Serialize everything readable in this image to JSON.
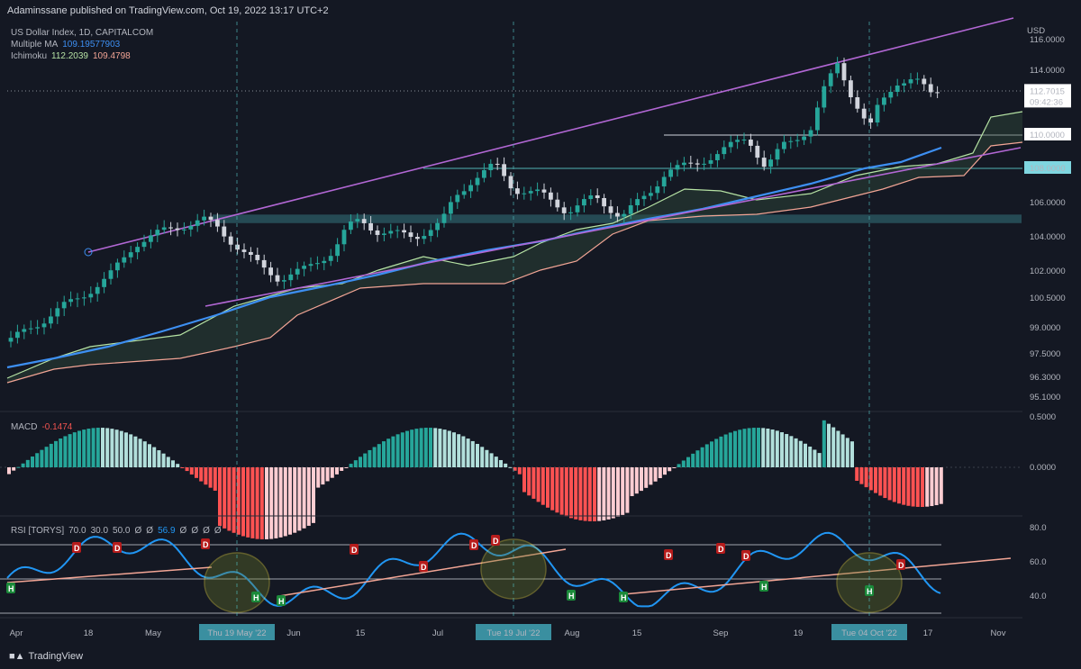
{
  "header": {
    "published": "Adaminssane published on TradingView.com, Oct 19, 2022 13:17 UTC+2"
  },
  "legend": {
    "symbol": "US Dollar Index, 1D, CAPITALCOM",
    "ma_label": "Multiple MA",
    "ma_value": "109.19577903",
    "ichimoku_label": "Ichimoku",
    "ichimoku_v1": "112.2039",
    "ichimoku_v2": "109.4798",
    "macd_label": "MACD",
    "macd_value": "-0.1474",
    "rsi_label": "RSI [TORYS]",
    "rsi_params": [
      "70.0",
      "30.0",
      "50.0",
      "Ø",
      "Ø"
    ],
    "rsi_value": "56.9",
    "rsi_tail": [
      "Ø",
      "Ø",
      "Ø",
      "Ø"
    ]
  },
  "brand": "TradingView",
  "colors": {
    "bg": "#141823",
    "bull": "#26a69a",
    "bear": "#d1d4dc",
    "ma": "#3d8ff2",
    "span_a": "#b6e3a4",
    "span_b": "#f2a595",
    "trend": "#b267d4",
    "rsi": "#2196f3",
    "zone": "#2b5b66"
  },
  "chart_data": [
    {
      "type": "candlestick",
      "title": "US Dollar Index, 1D, CAPITALCOM",
      "currency": "USD",
      "price_labels": [
        "116.0000",
        "114.0000",
        "112.7015",
        "110.0000",
        "108.0000",
        "106.0000",
        "104.0000",
        "102.0000",
        "100.5000",
        "99.0000",
        "97.5000",
        "96.3000",
        "95.1000"
      ],
      "price_ticks": [
        116,
        114,
        110,
        108,
        106,
        104,
        102,
        100.5,
        99,
        97.5,
        96.3,
        95.1
      ],
      "ylim": [
        94.3,
        117.0
      ],
      "last_price": "112.7015",
      "countdown": "09:42:36",
      "levels": [
        110,
        108
      ],
      "zone": [
        104.8,
        105.3
      ],
      "x_labels": [
        "Apr",
        "18",
        "May",
        "Jun",
        "15",
        "Jul",
        "Aug",
        "15",
        "Sep",
        "19",
        "Nov",
        "17"
      ],
      "highlight_dates": [
        "Thu 19 May '22",
        "Tue 19 Jul '22",
        "Tue 04 Oct '22"
      ],
      "series_note": "Daily candles Apr - Oct 2022 with Multiple MA and Ichimoku cloud"
    },
    {
      "type": "bar",
      "title": "MACD",
      "value": "-0.1474",
      "y_labels": [
        "0.5000",
        "0.0000"
      ]
    },
    {
      "type": "line",
      "title": "RSI [TORYS]",
      "value": "56.9",
      "y_labels": [
        "80.0",
        "60.0",
        "40.0"
      ],
      "levels": [
        70,
        50,
        30
      ],
      "divergence_marks": [
        "D",
        "H"
      ]
    }
  ]
}
